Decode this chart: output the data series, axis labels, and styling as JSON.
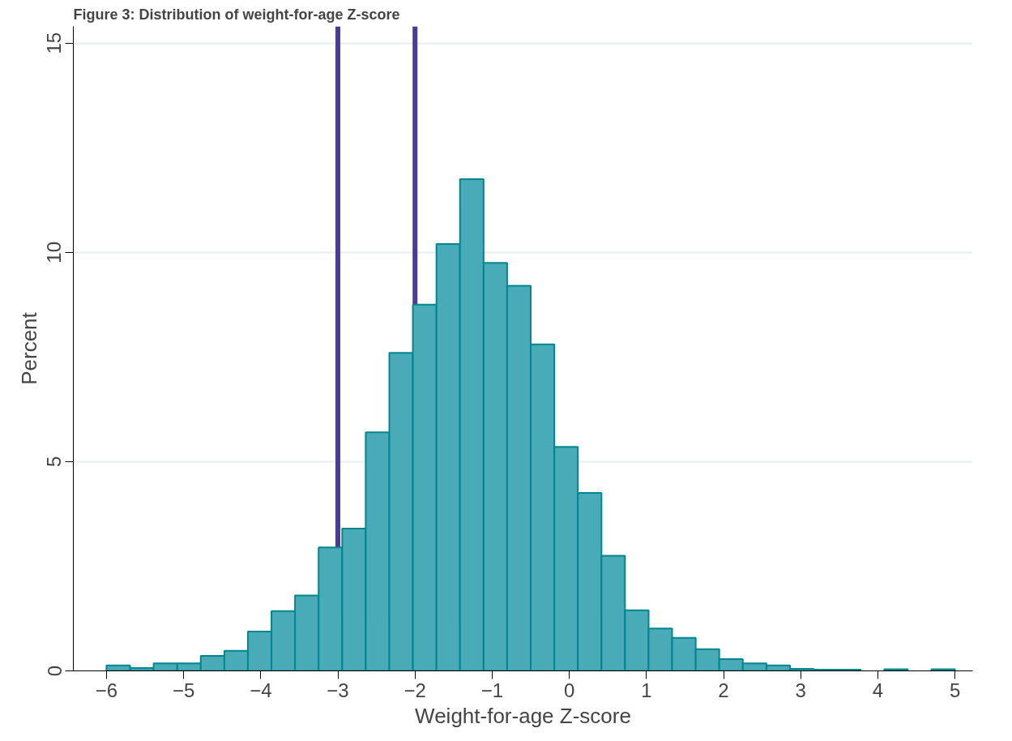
{
  "chart_data": {
    "type": "histogram",
    "title": "Figure 3: Distribution of weight-for-age Z-score",
    "xlabel": "Weight-for-age Z-score",
    "ylabel": "Percent",
    "bins": [
      -6.0,
      -5.694,
      -5.389,
      -5.083,
      -4.778,
      -4.472,
      -4.167,
      -3.861,
      -3.556,
      -3.25,
      -2.944,
      -2.639,
      -2.333,
      -2.028,
      -1.722,
      -1.417,
      -1.111,
      -0.806,
      -0.5,
      -0.194,
      0.111,
      0.417,
      0.722,
      1.028,
      1.333,
      1.639,
      1.944,
      2.25,
      2.556,
      2.861,
      3.167,
      3.472,
      3.778,
      4.083,
      4.389,
      4.694,
      5.0
    ],
    "values": [
      0.13,
      0.07,
      0.18,
      0.18,
      0.36,
      0.48,
      0.94,
      1.43,
      1.8,
      2.95,
      3.4,
      5.7,
      7.6,
      8.75,
      10.2,
      11.75,
      9.75,
      9.2,
      7.8,
      5.35,
      4.25,
      2.75,
      1.45,
      1.01,
      0.79,
      0.52,
      0.28,
      0.18,
      0.13,
      0.05,
      0.03,
      0.03,
      0,
      0.04,
      0,
      0.04
    ],
    "color": "#4aabb8",
    "xlim": [
      -6.43,
      5.23
    ],
    "ylim": [
      0,
      15.4
    ],
    "xticks": [
      -6,
      -5,
      -4,
      -3,
      -2,
      -1,
      0,
      1,
      2,
      3,
      4,
      5
    ],
    "yticks": [
      0,
      5,
      10,
      15
    ],
    "grid": "y",
    "ref_lines": [
      {
        "axis": "x",
        "value": -3,
        "color": "#4b3a96"
      },
      {
        "axis": "x",
        "value": -2,
        "color": "#4b3a96"
      }
    ]
  }
}
